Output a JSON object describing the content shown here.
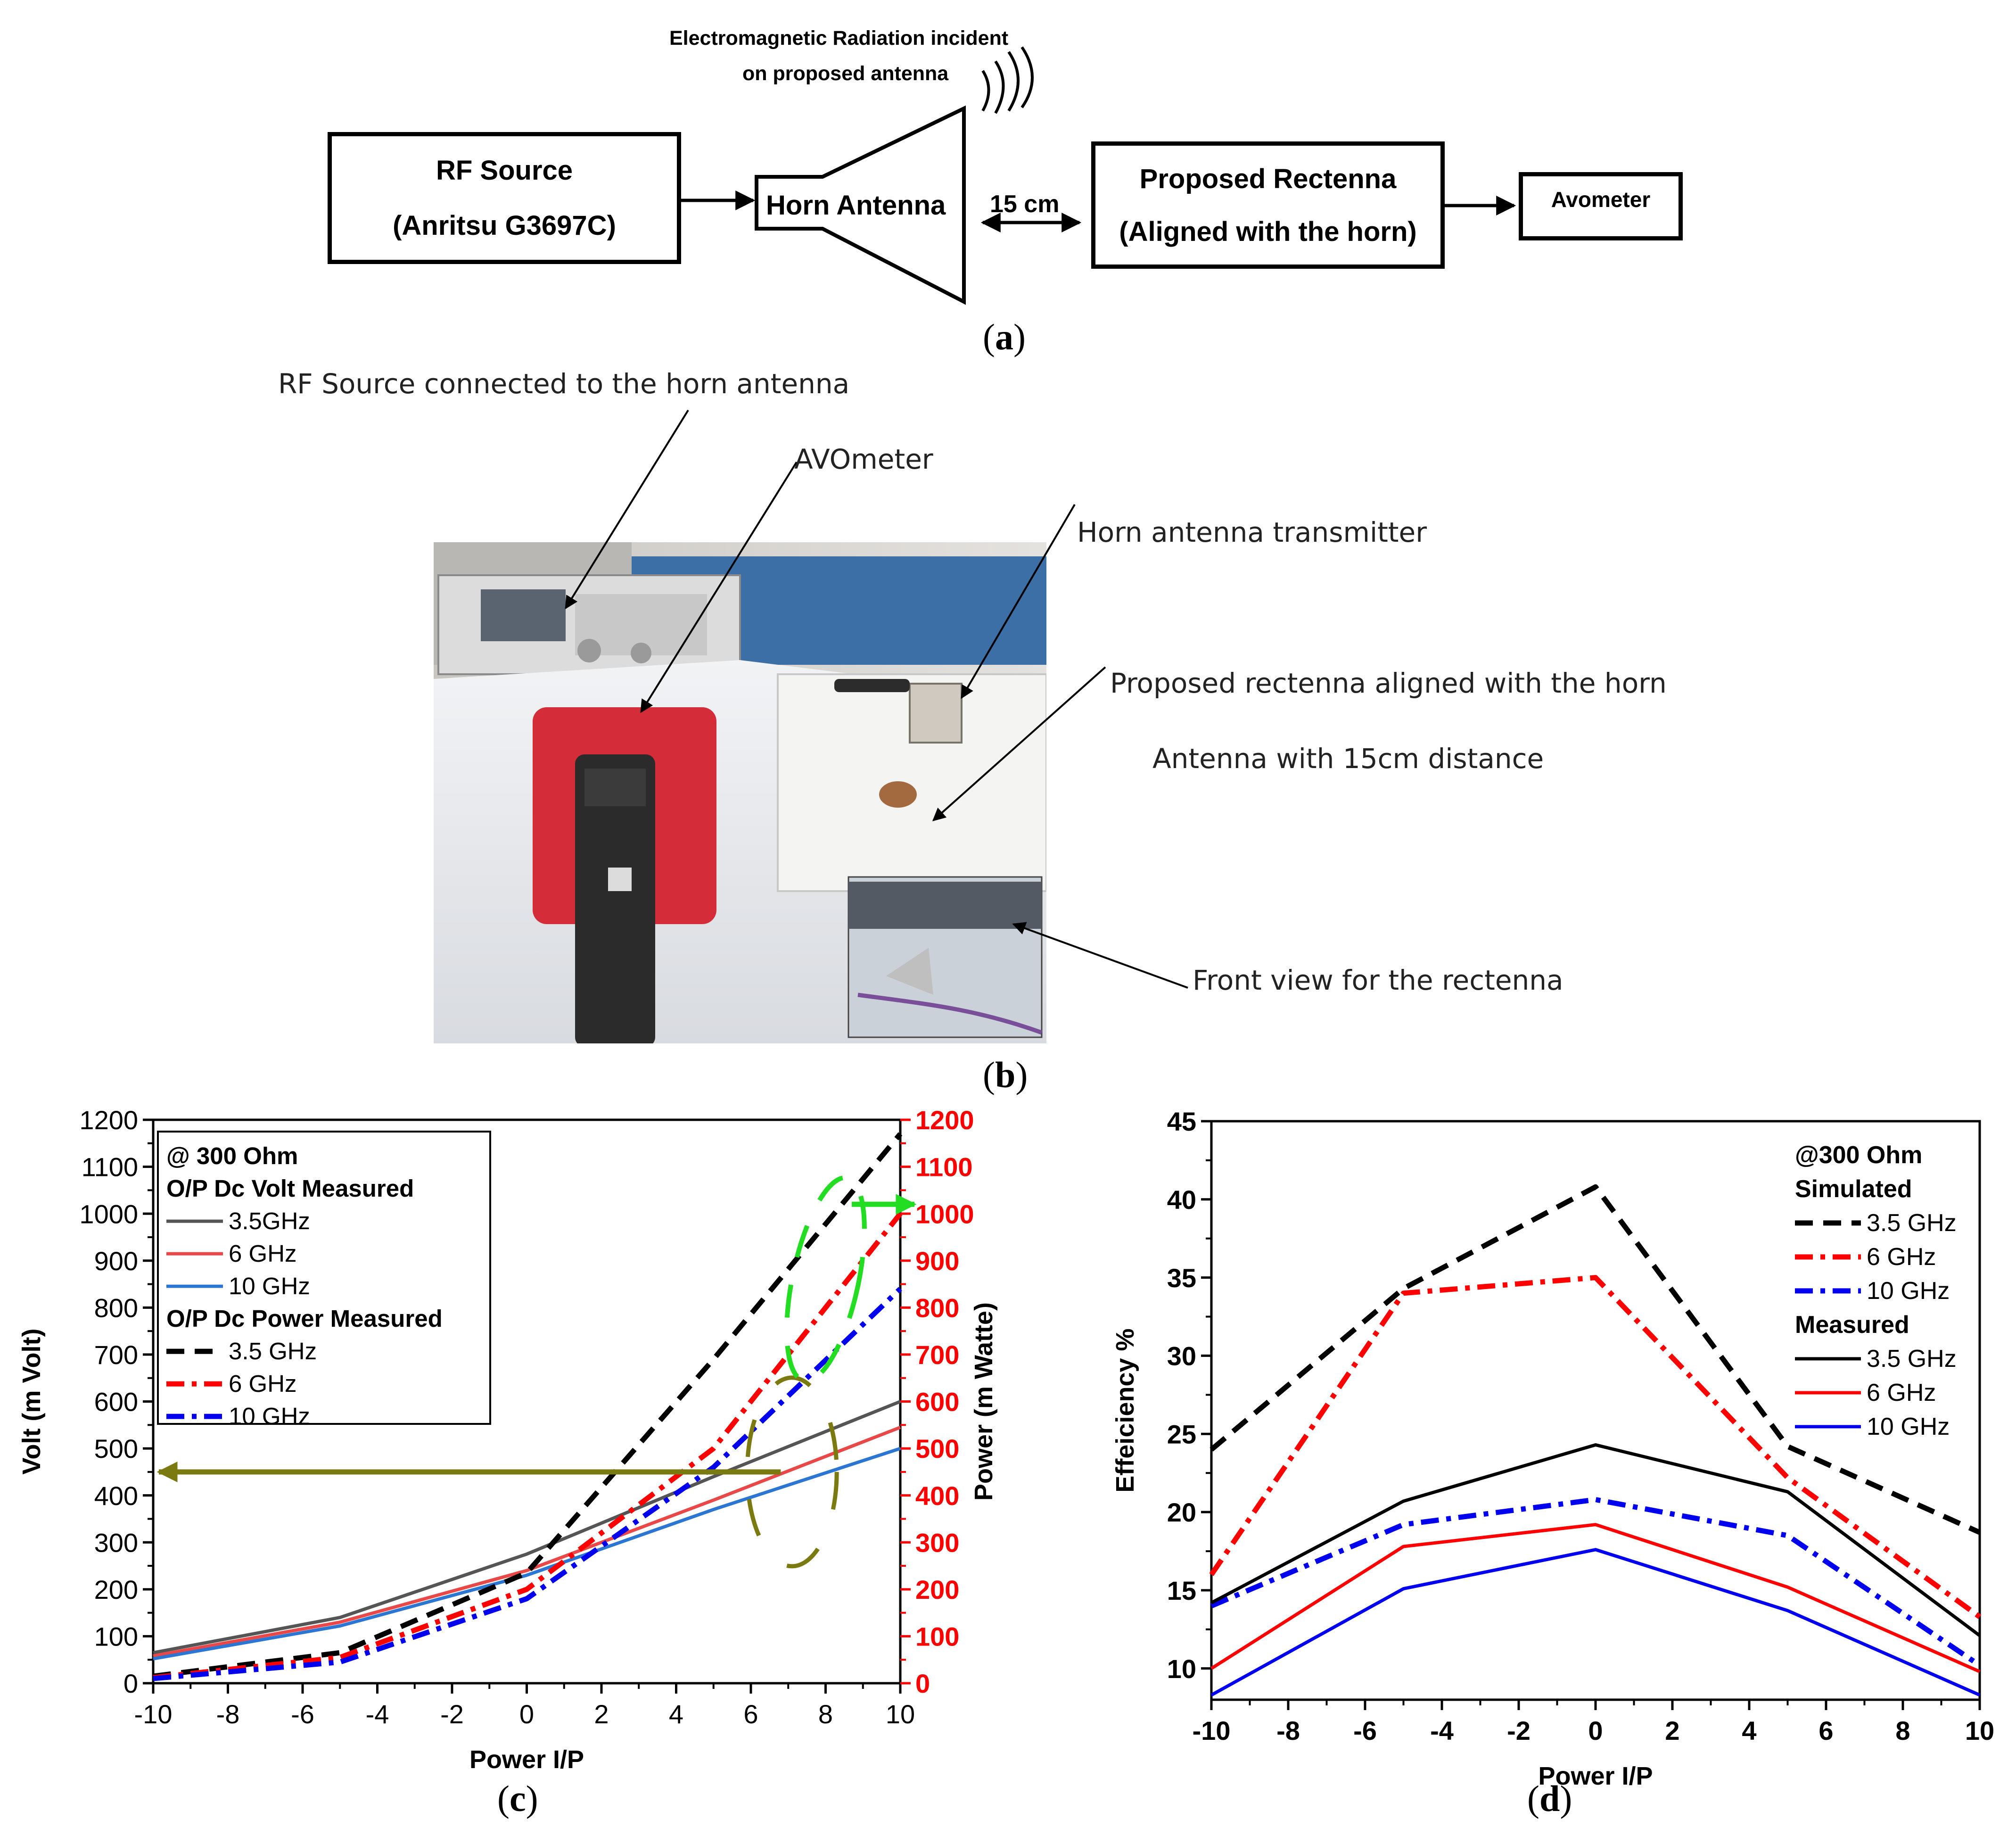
{
  "panel_a": {
    "label": "a",
    "rf_source_line1": "RF Source",
    "rf_source_line2": "(Anritsu G3697C)",
    "horn_antenna": "Horn Antenna",
    "distance": "15 cm",
    "rectenna_line1": "Proposed Rectenna",
    "rectenna_line2": "(Aligned with the horn)",
    "avometer": "Avometer",
    "radiation_line1": "Electromagnetic Radiation incident",
    "radiation_line2": "on proposed antenna"
  },
  "panel_b": {
    "label": "b",
    "callout_rf_source": "RF Source connected to the horn antenna",
    "callout_avometer": "AVOmeter",
    "callout_horn": "Horn antenna transmitter",
    "callout_rectenna_line1": "Proposed rectenna aligned with the horn",
    "callout_rectenna_line2": "Antenna with 15cm distance",
    "callout_front_view": "Front view for the rectenna"
  },
  "panel_c": {
    "label": "c"
  },
  "panel_d": {
    "label": "d"
  },
  "chart_data": [
    {
      "type": "line",
      "panel": "c",
      "xlabel": "Power I/P",
      "ylabel": "Volt (m Volt)",
      "y2label": "Power (m Watte)",
      "xlim": [
        -10,
        10
      ],
      "ylim": [
        0,
        1200
      ],
      "y2lim": [
        0,
        1200
      ],
      "x_ticks": [
        -10,
        -8,
        -6,
        -4,
        -2,
        0,
        2,
        4,
        6,
        8,
        10
      ],
      "y_ticks": [
        0,
        100,
        200,
        300,
        400,
        500,
        600,
        700,
        800,
        900,
        1000,
        1100,
        1200
      ],
      "legend": {
        "position": "top-left",
        "title": "@ 300 Ohm",
        "group1": "O/P Dc Volt Measured",
        "group2": "O/P Dc Power Measured"
      },
      "series": [
        {
          "name": "3.5GHz",
          "group": "volt",
          "axis": "left",
          "color": "#555555",
          "style": "solid",
          "x": [
            -10,
            -5,
            0,
            5,
            10
          ],
          "y": [
            65,
            140,
            275,
            440,
            600
          ]
        },
        {
          "name": "6 GHz",
          "group": "volt",
          "axis": "left",
          "color": "#e84848",
          "style": "solid",
          "x": [
            -10,
            -5,
            0,
            5,
            10
          ],
          "y": [
            58,
            130,
            240,
            390,
            545
          ]
        },
        {
          "name": "10 GHz",
          "group": "volt",
          "axis": "left",
          "color": "#2a76d2",
          "style": "solid",
          "x": [
            -10,
            -5,
            0,
            5,
            10
          ],
          "y": [
            52,
            122,
            230,
            370,
            500
          ]
        },
        {
          "name": "3.5 GHz",
          "group": "power",
          "axis": "right",
          "color": "#000000",
          "style": "dash",
          "x": [
            -10,
            -5,
            0,
            5,
            10
          ],
          "y": [
            15,
            65,
            235,
            690,
            1170
          ]
        },
        {
          "name": "6 GHz",
          "group": "power",
          "axis": "right",
          "color": "#ff0000",
          "style": "dashdot",
          "x": [
            -10,
            -5,
            0,
            5,
            10
          ],
          "y": [
            12,
            55,
            200,
            500,
            1000
          ]
        },
        {
          "name": "10 GHz",
          "group": "power",
          "axis": "right",
          "color": "#0000ee",
          "style": "dashdot",
          "x": [
            -10,
            -5,
            0,
            5,
            10
          ],
          "y": [
            10,
            45,
            180,
            460,
            840
          ]
        }
      ]
    },
    {
      "type": "line",
      "panel": "d",
      "xlabel": "Power I/P",
      "ylabel": "Effeiciency %",
      "xlim": [
        -10,
        10
      ],
      "ylim": [
        8,
        45
      ],
      "x_ticks": [
        -10,
        -8,
        -6,
        -4,
        -2,
        0,
        2,
        4,
        6,
        8,
        10
      ],
      "y_ticks": [
        10,
        15,
        20,
        25,
        30,
        35,
        40,
        45
      ],
      "legend": {
        "position": "top-right",
        "title": "@300 Ohm",
        "group1": "Simulated",
        "group2": "Measured"
      },
      "series": [
        {
          "name": "3.5 GHz",
          "group": "simulated",
          "color": "#000000",
          "style": "dash",
          "x": [
            -10,
            -5,
            0,
            5,
            10
          ],
          "y": [
            24,
            34.3,
            40.8,
            24.2,
            18.7
          ]
        },
        {
          "name": "6 GHz",
          "group": "simulated",
          "color": "#ff0000",
          "style": "dashdot",
          "x": [
            -10,
            -5,
            0,
            5,
            10
          ],
          "y": [
            16,
            34,
            35,
            22.2,
            13.3
          ]
        },
        {
          "name": "10 GHz",
          "group": "simulated",
          "color": "#0000ee",
          "style": "dashdot",
          "x": [
            -10,
            -5,
            0,
            5,
            10
          ],
          "y": [
            14,
            19.2,
            20.8,
            18.5,
            10.2
          ]
        },
        {
          "name": "3.5 GHz",
          "group": "measured",
          "color": "#000000",
          "style": "solid",
          "x": [
            -10,
            -5,
            0,
            5,
            10
          ],
          "y": [
            14.2,
            20.7,
            24.3,
            21.3,
            12.1
          ]
        },
        {
          "name": "6 GHz",
          "group": "measured",
          "color": "#ff0000",
          "style": "solid",
          "x": [
            -10,
            -5,
            0,
            5,
            10
          ],
          "y": [
            10,
            17.8,
            19.2,
            15.2,
            9.8
          ]
        },
        {
          "name": "10 GHz",
          "group": "measured",
          "color": "#0000ee",
          "style": "solid",
          "x": [
            -10,
            -5,
            0,
            5,
            10
          ],
          "y": [
            8.3,
            15.1,
            17.6,
            13.7,
            8.3
          ]
        }
      ]
    }
  ]
}
